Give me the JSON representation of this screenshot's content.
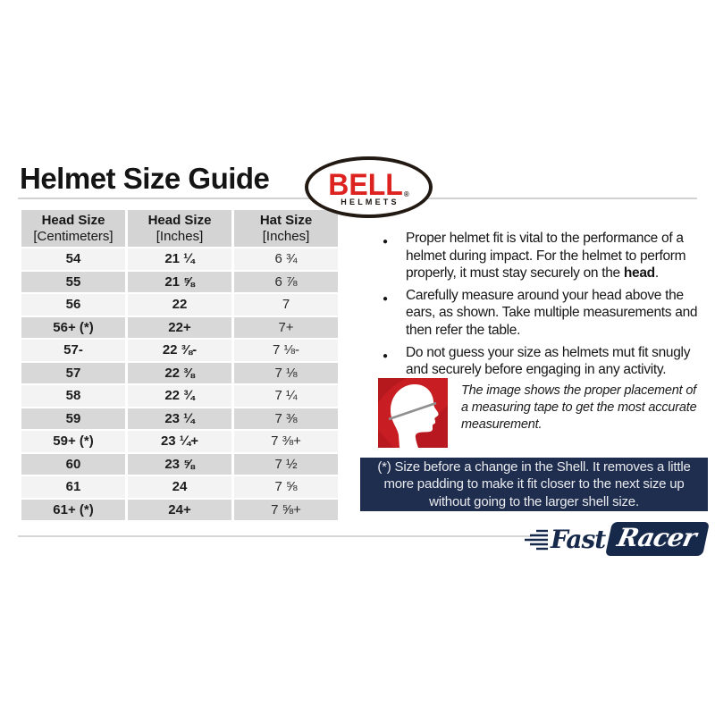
{
  "page": {
    "title": "Helmet Size Guide"
  },
  "bell_logo": {
    "word": "BELL",
    "registered_mark": "®",
    "sub": "HELMETS",
    "red": "#dd231f"
  },
  "table": {
    "headers": [
      {
        "line1": "Head Size",
        "line2": "[Centimeters]"
      },
      {
        "line1": "Head Size",
        "line2": "[Inches]"
      },
      {
        "line1": "Hat Size",
        "line2": "[Inches]"
      }
    ],
    "rows": [
      [
        "54",
        "21 ¼",
        "6 ¾"
      ],
      [
        "55",
        "21 ⅝",
        "6 ⅞"
      ],
      [
        "56",
        "22",
        "7"
      ],
      [
        "56+ (*)",
        "22+",
        "7+"
      ],
      [
        "57-",
        "22 ⅜-",
        "7 ⅛-"
      ],
      [
        "57",
        "22 ⅜",
        "7 ⅛"
      ],
      [
        "58",
        "22 ¾",
        "7 ¼"
      ],
      [
        "59",
        "23 ¼",
        "7 ⅜"
      ],
      [
        "59+ (*)",
        "23 ¼+",
        "7 ⅜+"
      ],
      [
        "60",
        "23 ⅝",
        "7 ½"
      ],
      [
        "61",
        "24",
        "7 ⅝"
      ],
      [
        "61+ (*)",
        "24+",
        "7 ⅝+"
      ]
    ]
  },
  "bullets": [
    {
      "marker": "●",
      "pre": "Proper helmet fit is vital to the performance of a helmet during impact. For the helmet to perform properly, it must stay securely on the ",
      "bold": "head",
      "post": "."
    },
    {
      "marker": "●",
      "pre": "Carefully measure around your head above the ears, as shown. Take multiple measurements and then refer the table.",
      "bold": "",
      "post": ""
    },
    {
      "marker": "●",
      "pre": "Do not guess your size as helmets mut fit snugly and securely before engaging in any activity.",
      "bold": "",
      "post": ""
    }
  ],
  "figure": {
    "caption": "The image shows the proper placement of a measuring tape to get the most accurate measurement.",
    "red": "#c81d23"
  },
  "note": "(*) Size before a change in the Shell. It removes a little more padding to make it fit closer to the next size up without going to the larger shell size.",
  "footer_logo": {
    "fast": "Fast",
    "racer": "Racer",
    "navy": "#16294a"
  }
}
